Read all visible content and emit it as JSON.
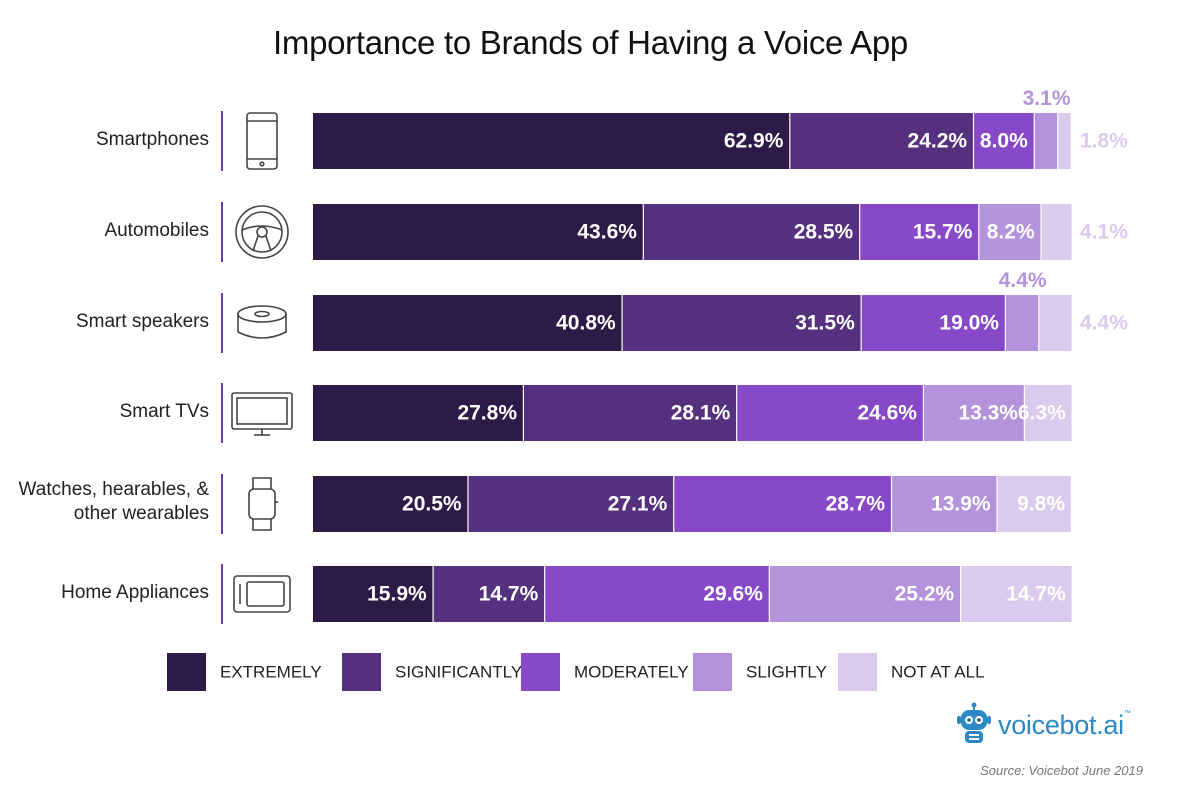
{
  "chart_data": {
    "type": "bar",
    "orientation": "horizontal",
    "stacked": true,
    "title": "Importance to Brands of Having a Voice App",
    "categories": [
      "Smartphones",
      "Automobiles",
      "Smart speakers",
      "Smart TVs",
      "Watches, hearables, & other wearables",
      "Home Appliances"
    ],
    "category_icons": [
      "smartphone-icon",
      "steering-wheel-icon",
      "smart-speaker-icon",
      "tv-icon",
      "smartwatch-icon",
      "home-appliance-icon"
    ],
    "series": [
      {
        "name": "EXTREMELY",
        "color": "#2e1a47",
        "values": [
          62.9,
          43.6,
          40.8,
          27.8,
          20.5,
          15.9
        ]
      },
      {
        "name": "SIGNIFICANTLY",
        "color": "#54307f",
        "values": [
          24.2,
          28.5,
          31.5,
          28.1,
          27.1,
          14.7
        ]
      },
      {
        "name": "MODERATELY",
        "color": "#8849c8",
        "values": [
          8.0,
          15.7,
          19.0,
          24.6,
          28.7,
          29.6
        ]
      },
      {
        "name": "SLIGHTLY",
        "color": "#b492dc",
        "values": [
          3.1,
          8.2,
          4.4,
          13.3,
          13.9,
          25.2
        ]
      },
      {
        "name": "NOT AT ALL",
        "color": "#dacbee",
        "values": [
          1.8,
          4.1,
          4.4,
          6.3,
          9.8,
          14.7
        ]
      }
    ],
    "value_labels": [
      [
        "62.9%",
        "24.2%",
        "8.0%",
        "3.1%",
        "1.8%"
      ],
      [
        "43.6%",
        "28.5%",
        "15.7%",
        "8.2%",
        "4.1%"
      ],
      [
        "40.8%",
        "31.5%",
        "19.0%",
        "4.4%",
        "4.4%"
      ],
      [
        "27.8%",
        "28.1%",
        "24.6%",
        "13.3%",
        "6.3%"
      ],
      [
        "20.5%",
        "27.1%",
        "28.7%",
        "13.9%",
        "9.8%"
      ],
      [
        "15.9%",
        "14.7%",
        "29.6%",
        "25.2%",
        "14.7%"
      ]
    ],
    "xlim": [
      0,
      100
    ],
    "grid": false,
    "legend_position": "bottom"
  },
  "brand": {
    "name": "voicebot.ai",
    "tm": "™",
    "color": "#2c89c6"
  },
  "source": "Source: Voicebot June 2019"
}
